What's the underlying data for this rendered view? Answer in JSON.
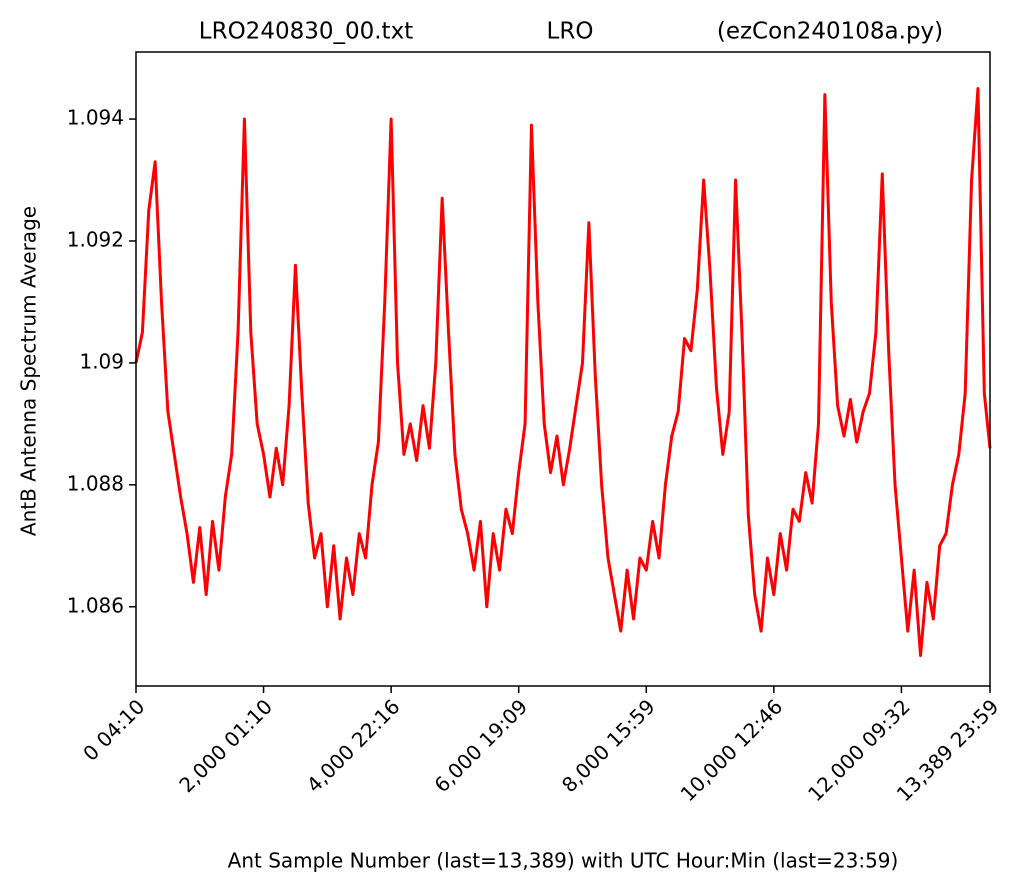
{
  "chart_data": {
    "type": "line",
    "title_left": "LRO240830_00.txt",
    "title_center": "LRO",
    "title_right": "(ezCon240108a.py)",
    "x_label": "Ant Sample Number (last=13,389) with UTC Hour:Min (last=23:59)",
    "y_label": "AntB Antenna Spectrum Average",
    "color": "#ff0000",
    "xlim": [
      0,
      13389
    ],
    "xticks": [
      {
        "value": 0,
        "label": "0  04:10"
      },
      {
        "value": 2000,
        "label": "2,000  01:10"
      },
      {
        "value": 4000,
        "label": "4,000  22:16"
      },
      {
        "value": 6000,
        "label": "6,000  19:09"
      },
      {
        "value": 8000,
        "label": "8,000  15:59"
      },
      {
        "value": 10000,
        "label": "10,000  12:46"
      },
      {
        "value": 12000,
        "label": "12,000  09:32"
      },
      {
        "value": 13389,
        "label": "13,389  23:59"
      }
    ],
    "ylim": [
      1.0847,
      1.0951
    ],
    "yticks": [
      1.086,
      1.088,
      1.09,
      1.092,
      1.094
    ],
    "x": [
      0,
      100,
      200,
      300,
      400,
      500,
      600,
      700,
      800,
      900,
      1000,
      1100,
      1200,
      1300,
      1400,
      1500,
      1600,
      1700,
      1800,
      1900,
      2000,
      2100,
      2200,
      2300,
      2400,
      2500,
      2600,
      2700,
      2800,
      2900,
      3000,
      3100,
      3200,
      3300,
      3400,
      3500,
      3600,
      3700,
      3800,
      3900,
      4000,
      4100,
      4200,
      4300,
      4400,
      4500,
      4600,
      4700,
      4800,
      4900,
      5000,
      5100,
      5200,
      5300,
      5400,
      5500,
      5600,
      5700,
      5800,
      5900,
      6000,
      6100,
      6200,
      6300,
      6400,
      6500,
      6600,
      6700,
      6800,
      6900,
      7000,
      7100,
      7200,
      7300,
      7400,
      7500,
      7600,
      7700,
      7800,
      7900,
      8000,
      8100,
      8200,
      8300,
      8400,
      8500,
      8600,
      8700,
      8800,
      8900,
      9000,
      9100,
      9200,
      9300,
      9400,
      9500,
      9600,
      9700,
      9800,
      9900,
      10000,
      10100,
      10200,
      10300,
      10400,
      10500,
      10600,
      10700,
      10800,
      10900,
      11000,
      11100,
      11200,
      11300,
      11400,
      11500,
      11600,
      11700,
      11800,
      11900,
      12000,
      12100,
      12200,
      12300,
      12400,
      12500,
      12600,
      12700,
      12800,
      12900,
      13000,
      13100,
      13200,
      13300,
      13389
    ],
    "values": [
      1.09,
      1.0905,
      1.0925,
      1.0933,
      1.091,
      1.0892,
      1.0885,
      1.0878,
      1.0872,
      1.0864,
      1.0873,
      1.0862,
      1.0874,
      1.0866,
      1.0878,
      1.0885,
      1.0905,
      1.094,
      1.0905,
      1.089,
      1.0885,
      1.0878,
      1.0886,
      1.088,
      1.0893,
      1.0916,
      1.0895,
      1.0877,
      1.0868,
      1.0872,
      1.086,
      1.087,
      1.0858,
      1.0868,
      1.0862,
      1.0872,
      1.0868,
      1.088,
      1.0887,
      1.091,
      1.094,
      1.09,
      1.0885,
      1.089,
      1.0884,
      1.0893,
      1.0886,
      1.09,
      1.0927,
      1.0905,
      1.0885,
      1.0876,
      1.0872,
      1.0866,
      1.0874,
      1.086,
      1.0872,
      1.0866,
      1.0876,
      1.0872,
      1.0882,
      1.089,
      1.0939,
      1.091,
      1.089,
      1.0882,
      1.0888,
      1.088,
      1.0886,
      1.0893,
      1.09,
      1.0923,
      1.0898,
      1.088,
      1.0868,
      1.0862,
      1.0856,
      1.0866,
      1.0858,
      1.0868,
      1.0866,
      1.0874,
      1.0868,
      1.088,
      1.0888,
      1.0892,
      1.0904,
      1.0902,
      1.0912,
      1.093,
      1.0915,
      1.0896,
      1.0885,
      1.0892,
      1.093,
      1.0905,
      1.0875,
      1.0862,
      1.0856,
      1.0868,
      1.0862,
      1.0872,
      1.0866,
      1.0876,
      1.0874,
      1.0882,
      1.0877,
      1.089,
      1.0944,
      1.091,
      1.0893,
      1.0888,
      1.0894,
      1.0887,
      1.0892,
      1.0895,
      1.0905,
      1.0931,
      1.0902,
      1.088,
      1.0868,
      1.0856,
      1.0866,
      1.0852,
      1.0864,
      1.0858,
      1.087,
      1.0872,
      1.088,
      1.0885,
      1.0895,
      1.093,
      1.0945,
      1.0895,
      1.0886
    ]
  }
}
